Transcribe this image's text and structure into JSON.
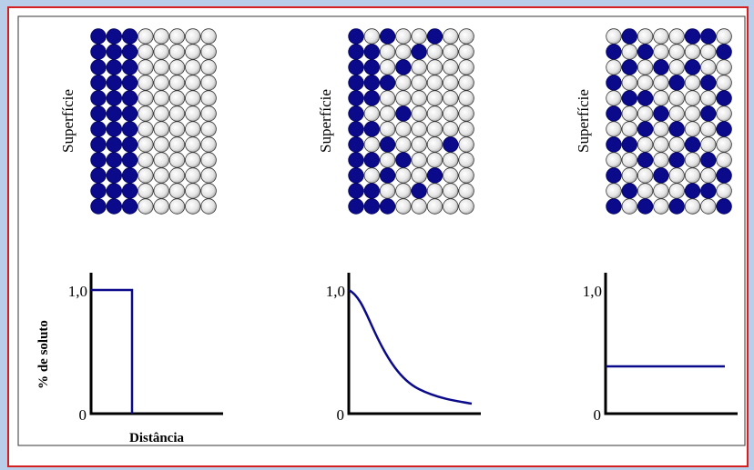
{
  "panels": [
    {
      "surface_label": "Superfície",
      "y_max_label": "1,0",
      "y_min_label": "0"
    },
    {
      "surface_label": "Superfície",
      "y_max_label": "1,0",
      "y_min_label": "0"
    },
    {
      "surface_label": "Superfície",
      "y_max_label": "1,0",
      "y_min_label": "0"
    }
  ],
  "y_axis_title": "% de soluto",
  "x_axis_title": "Distância"
}
